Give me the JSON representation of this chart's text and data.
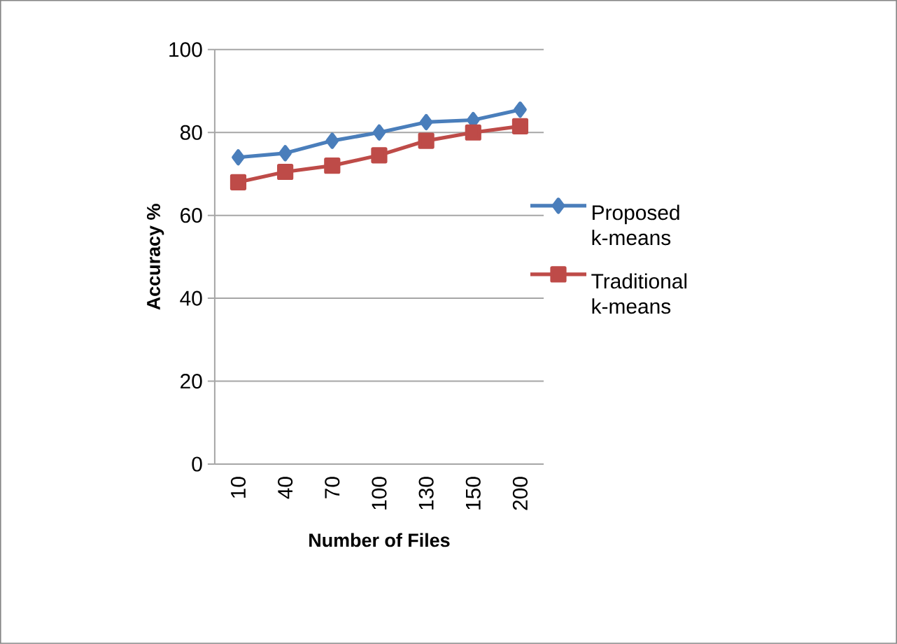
{
  "chart_data": {
    "type": "line",
    "xlabel": "Number of Files",
    "ylabel": "Accuracy %",
    "categories": [
      "10",
      "40",
      "70",
      "100",
      "130",
      "150",
      "200"
    ],
    "series": [
      {
        "name": "Proposed k-means",
        "color": "#4a7ebb",
        "marker": "diamond",
        "values": [
          74,
          75,
          78,
          80,
          82.5,
          83,
          85.5
        ]
      },
      {
        "name": "Traditional k-means",
        "color": "#be4b48",
        "marker": "square",
        "values": [
          68,
          70.5,
          72,
          74.5,
          78,
          80,
          81.5
        ]
      }
    ],
    "ylim": [
      0,
      100
    ],
    "yticks": [
      0,
      20,
      40,
      60,
      80,
      100
    ],
    "grid": "y",
    "legend": "right"
  }
}
